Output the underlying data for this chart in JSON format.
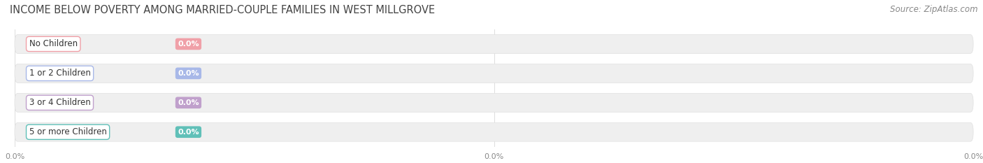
{
  "title": "INCOME BELOW POVERTY AMONG MARRIED-COUPLE FAMILIES IN WEST MILLGROVE",
  "source": "Source: ZipAtlas.com",
  "categories": [
    "No Children",
    "1 or 2 Children",
    "3 or 4 Children",
    "5 or more Children"
  ],
  "values": [
    0.0,
    0.0,
    0.0,
    0.0
  ],
  "bar_colors": [
    "#f0a0a8",
    "#a8b8e8",
    "#c0a0cc",
    "#60c0b8"
  ],
  "background_color": "#ffffff",
  "track_color": "#efefef",
  "track_edge_color": "#e0e0e0",
  "title_fontsize": 10.5,
  "source_fontsize": 8.5,
  "label_fontsize": 8.5,
  "value_fontsize": 8,
  "tick_labels": [
    "0.0%",
    "0.0%",
    "0.0%"
  ],
  "tick_fontsize": 8
}
